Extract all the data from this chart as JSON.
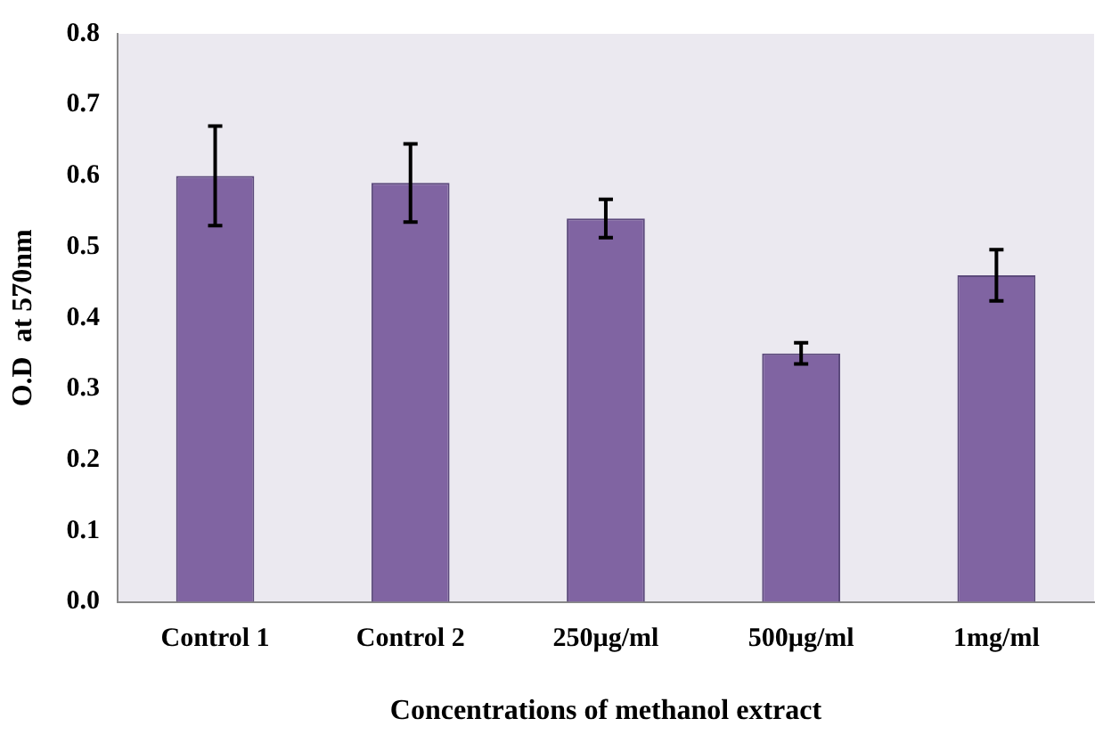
{
  "chart_data": {
    "type": "bar",
    "xlabel": "Concentrations of methanol extract",
    "ylabel": "O.D  at 570nm",
    "categories": [
      "Control 1",
      "Control 2",
      "250µg/ml",
      "500µg/ml",
      "1mg/ml"
    ],
    "values": [
      0.6,
      0.59,
      0.54,
      0.35,
      0.46
    ],
    "errors": [
      0.07,
      0.055,
      0.027,
      0.015,
      0.036
    ],
    "color": "#8064a2",
    "ylim": [
      0,
      0.8
    ],
    "yticks": [
      {
        "value": 0,
        "label": "0.0"
      },
      0.1,
      0.2,
      0.3,
      0.4,
      0.5,
      0.6,
      0.7,
      0.8
    ],
    "grid": false,
    "legend": false
  }
}
